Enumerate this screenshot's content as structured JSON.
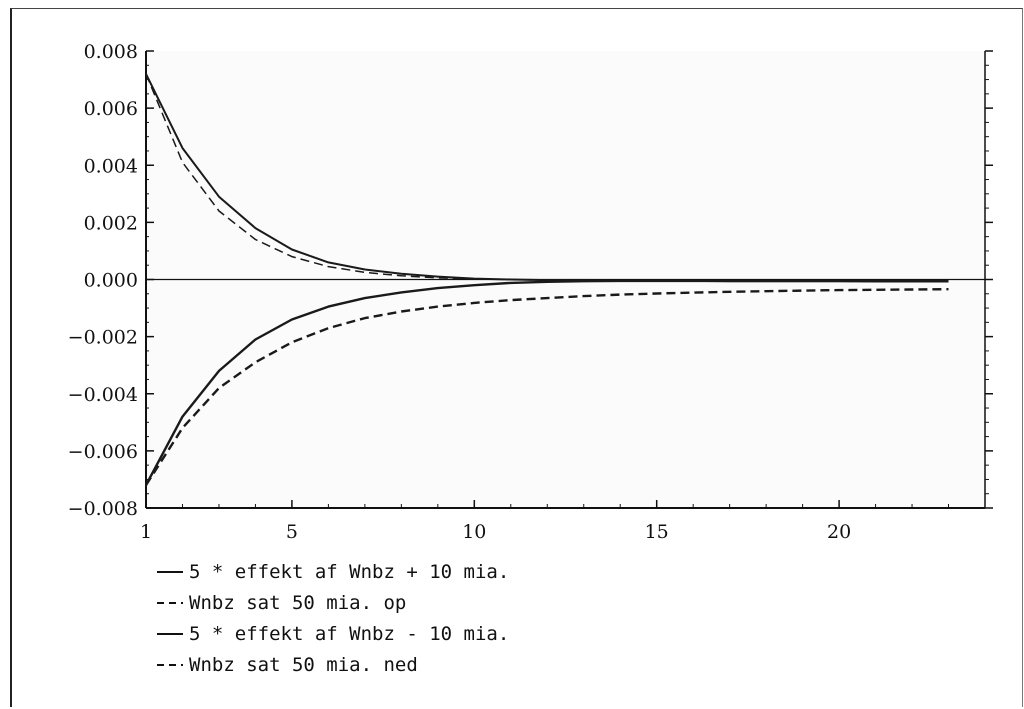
{
  "chart_data": {
    "type": "line",
    "title": "",
    "xlabel": "",
    "ylabel": "",
    "xlim": [
      1,
      24
    ],
    "ylim": [
      -0.008,
      0.008
    ],
    "x_ticks": [
      1,
      5,
      10,
      15,
      20
    ],
    "x_tick_labels": [
      "1",
      "5",
      "10",
      "15",
      "20"
    ],
    "y_ticks": [
      0.008,
      0.006,
      0.004,
      0.002,
      0.0,
      -0.002,
      -0.004,
      -0.006,
      -0.008
    ],
    "y_tick_labels": [
      "0.008",
      "0.006",
      "0.004",
      "0.002",
      "0.000",
      "−0.002",
      "−0.004",
      "−0.006",
      "−0.008"
    ],
    "grid": false,
    "legend_position": "bottom-left",
    "x": [
      1,
      2,
      3,
      4,
      5,
      6,
      7,
      8,
      9,
      10,
      11,
      12,
      13,
      14,
      15,
      16,
      17,
      18,
      19,
      20,
      21,
      22,
      23
    ],
    "series": [
      {
        "name": "5 * effekt af Wnbz + 10 mia.",
        "style": "solid",
        "values": [
          0.0072,
          0.0046,
          0.0029,
          0.0018,
          0.00105,
          0.0006,
          0.00035,
          0.0002,
          0.0001,
          3e-05,
          0.0,
          -2e-05,
          -3e-05,
          -4e-05,
          -5e-05,
          -5e-05,
          -6e-05,
          -6e-05,
          -6e-05,
          -6e-05,
          -7e-05,
          -7e-05,
          -7e-05
        ]
      },
      {
        "name": "Wnbz sat 50 mia. op",
        "style": "dashed",
        "values": [
          0.0072,
          0.0041,
          0.0024,
          0.0014,
          0.0008,
          0.00045,
          0.00025,
          0.00013,
          6e-05,
          2e-05,
          0.0,
          -2e-05,
          -3e-05,
          -4e-05,
          -5e-05,
          -5e-05,
          -6e-05,
          -6e-05,
          -6e-05,
          -6e-05,
          -7e-05,
          -7e-05,
          -7e-05
        ]
      },
      {
        "name": "5 * effekt af Wnbz - 10 mia.",
        "style": "solid",
        "values": [
          -0.0072,
          -0.0048,
          -0.0032,
          -0.0021,
          -0.0014,
          -0.00095,
          -0.00065,
          -0.00045,
          -0.0003,
          -0.0002,
          -0.00012,
          -8e-05,
          -6e-05,
          -5e-05,
          -5e-05,
          -5e-05,
          -5e-05,
          -5e-05,
          -5e-05,
          -5e-05,
          -5e-05,
          -5e-05,
          -5e-05
        ]
      },
      {
        "name": "Wnbz sat 50 mia. ned",
        "style": "dashed",
        "values": [
          -0.0072,
          -0.0052,
          -0.0038,
          -0.0029,
          -0.0022,
          -0.0017,
          -0.00135,
          -0.00112,
          -0.00095,
          -0.00082,
          -0.00072,
          -0.00065,
          -0.00058,
          -0.00053,
          -0.00049,
          -0.00046,
          -0.00043,
          -0.00041,
          -0.00039,
          -0.00037,
          -0.00036,
          -0.00035,
          -0.00034
        ]
      }
    ]
  },
  "legend": {
    "items": [
      {
        "label": "5 * effekt af Wnbz + 10 mia.",
        "dash": "solid"
      },
      {
        "label": "Wnbz sat 50 mia. op",
        "dash": "dashed"
      },
      {
        "label": "5 * effekt af Wnbz - 10 mia.",
        "dash": "solid"
      },
      {
        "label": "Wnbz sat 50 mia. ned",
        "dash": "dashed"
      }
    ]
  }
}
